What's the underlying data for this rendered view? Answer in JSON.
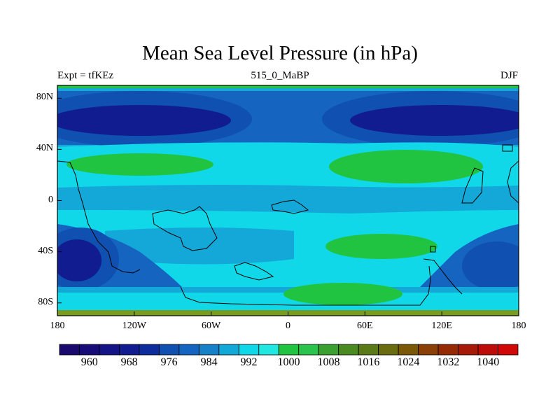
{
  "title": "Mean Sea Level Pressure (in hPa)",
  "subtitle_left": "Expt = tfKEz",
  "subtitle_center": "515_0_MaBP",
  "subtitle_right": "DJF",
  "lat_ticks": [
    {
      "label": "80N",
      "lat": 80
    },
    {
      "label": "40N",
      "lat": 40
    },
    {
      "label": "0",
      "lat": 0
    },
    {
      "label": "40S",
      "lat": -40
    },
    {
      "label": "80S",
      "lat": -80
    }
  ],
  "lon_ticks": [
    {
      "label": "180",
      "lon": -180
    },
    {
      "label": "120W",
      "lon": -120
    },
    {
      "label": "60W",
      "lon": -60
    },
    {
      "label": "0",
      "lon": 0
    },
    {
      "label": "60E",
      "lon": 60
    },
    {
      "label": "120E",
      "lon": 120
    },
    {
      "label": "180",
      "lon": 180
    }
  ],
  "colorbar": {
    "labels": [
      "960",
      "968",
      "976",
      "984",
      "992",
      "1000",
      "1008",
      "1016",
      "1024",
      "1032",
      "1040"
    ],
    "colors": [
      "#1a0a6e",
      "#180c78",
      "#141486",
      "#101c90",
      "#0e2c9c",
      "#1050b0",
      "#1464c0",
      "#1680c8",
      "#12a8d8",
      "#10d8e8",
      "#20e8e0",
      "#20c440",
      "#2ac44c",
      "#3aa030",
      "#4a8a20",
      "#5a7a18",
      "#6a6c10",
      "#7a5808",
      "#8a4006",
      "#962a04",
      "#a81a08",
      "#be0c08",
      "#d00808"
    ]
  }
}
